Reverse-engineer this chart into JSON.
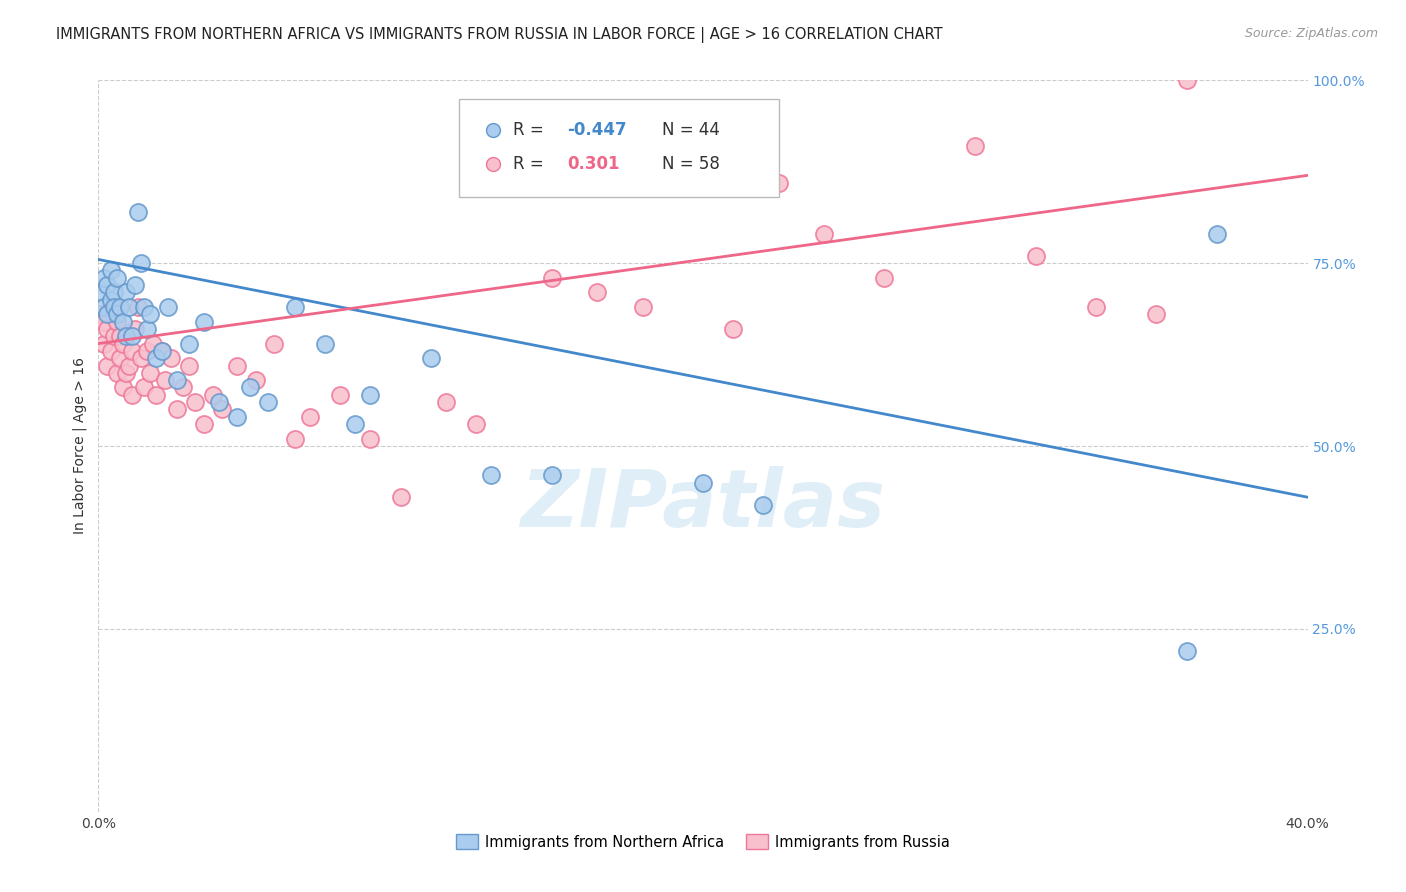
{
  "title": "IMMIGRANTS FROM NORTHERN AFRICA VS IMMIGRANTS FROM RUSSIA IN LABOR FORCE | AGE > 16 CORRELATION CHART",
  "source": "Source: ZipAtlas.com",
  "ylabel": "In Labor Force | Age > 16",
  "xlabel_blue": "Immigrants from Northern Africa",
  "xlabel_pink": "Immigrants from Russia",
  "watermark": "ZIPatlas",
  "blue_R": -0.447,
  "blue_N": 44,
  "pink_R": 0.301,
  "pink_N": 58,
  "blue_color": "#aaccee",
  "pink_color": "#f8c0cc",
  "blue_edge_color": "#6699cc",
  "pink_edge_color": "#ee7799",
  "blue_line_color": "#4488cc",
  "pink_line_color": "#ee6688",
  "xmin": 0.0,
  "xmax": 0.4,
  "ymin": 0.0,
  "ymax": 1.0,
  "yticks": [
    0.0,
    0.25,
    0.5,
    0.75,
    1.0
  ],
  "ytick_labels": [
    "",
    "25.0%",
    "50.0%",
    "75.0%",
    "100.0%"
  ],
  "xticks": [
    0.0,
    0.1,
    0.2,
    0.3,
    0.4
  ],
  "xtick_labels": [
    "0.0%",
    "",
    "",
    "",
    "40.0%"
  ],
  "blue_x": [
    0.001,
    0.002,
    0.002,
    0.003,
    0.003,
    0.004,
    0.004,
    0.005,
    0.005,
    0.006,
    0.006,
    0.007,
    0.008,
    0.009,
    0.009,
    0.01,
    0.011,
    0.012,
    0.013,
    0.014,
    0.015,
    0.016,
    0.017,
    0.019,
    0.021,
    0.023,
    0.026,
    0.03,
    0.035,
    0.04,
    0.046,
    0.05,
    0.056,
    0.065,
    0.075,
    0.085,
    0.09,
    0.11,
    0.13,
    0.15,
    0.2,
    0.22,
    0.36,
    0.37
  ],
  "blue_y": [
    0.71,
    0.69,
    0.73,
    0.72,
    0.68,
    0.74,
    0.7,
    0.71,
    0.69,
    0.73,
    0.68,
    0.69,
    0.67,
    0.71,
    0.65,
    0.69,
    0.65,
    0.72,
    0.82,
    0.75,
    0.69,
    0.66,
    0.68,
    0.62,
    0.63,
    0.69,
    0.59,
    0.64,
    0.67,
    0.56,
    0.54,
    0.58,
    0.56,
    0.69,
    0.64,
    0.53,
    0.57,
    0.62,
    0.46,
    0.46,
    0.45,
    0.42,
    0.22,
    0.79
  ],
  "pink_x": [
    0.001,
    0.002,
    0.002,
    0.003,
    0.003,
    0.004,
    0.004,
    0.005,
    0.006,
    0.006,
    0.007,
    0.007,
    0.008,
    0.008,
    0.009,
    0.01,
    0.011,
    0.011,
    0.012,
    0.013,
    0.014,
    0.015,
    0.016,
    0.017,
    0.018,
    0.019,
    0.021,
    0.022,
    0.024,
    0.026,
    0.028,
    0.03,
    0.032,
    0.035,
    0.038,
    0.041,
    0.046,
    0.052,
    0.058,
    0.065,
    0.07,
    0.08,
    0.09,
    0.1,
    0.115,
    0.125,
    0.15,
    0.165,
    0.18,
    0.21,
    0.225,
    0.24,
    0.26,
    0.29,
    0.31,
    0.33,
    0.35,
    0.36
  ],
  "pink_y": [
    0.68,
    0.64,
    0.67,
    0.66,
    0.61,
    0.69,
    0.63,
    0.65,
    0.67,
    0.6,
    0.62,
    0.65,
    0.58,
    0.64,
    0.6,
    0.61,
    0.63,
    0.57,
    0.66,
    0.69,
    0.62,
    0.58,
    0.63,
    0.6,
    0.64,
    0.57,
    0.63,
    0.59,
    0.62,
    0.55,
    0.58,
    0.61,
    0.56,
    0.53,
    0.57,
    0.55,
    0.61,
    0.59,
    0.64,
    0.51,
    0.54,
    0.57,
    0.51,
    0.43,
    0.56,
    0.53,
    0.73,
    0.71,
    0.69,
    0.66,
    0.86,
    0.79,
    0.73,
    0.91,
    0.76,
    0.69,
    0.68,
    1.0
  ],
  "blue_line_x0": 0.0,
  "blue_line_x1": 0.4,
  "blue_line_y0": 0.755,
  "blue_line_y1": 0.43,
  "pink_line_x0": 0.0,
  "pink_line_x1": 0.4,
  "pink_line_y0": 0.64,
  "pink_line_y1": 0.87,
  "title_fontsize": 10.5,
  "axis_fontsize": 10,
  "tick_fontsize": 10,
  "legend_fontsize": 12,
  "source_fontsize": 9
}
